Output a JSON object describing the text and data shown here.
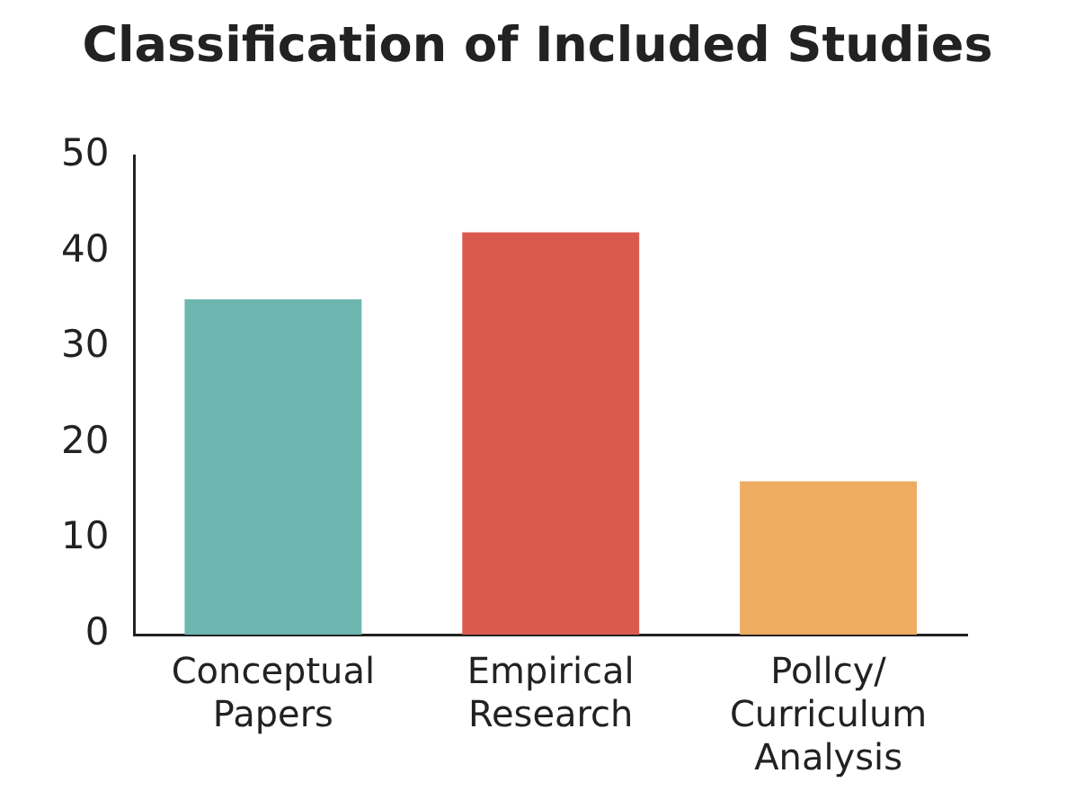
{
  "chart_data": {
    "type": "bar",
    "title": "Classification of Included Studies",
    "categories": [
      "Conceptual Papers",
      "Empirical Research",
      "Pollcy/ Curriculum Analysis"
    ],
    "values": [
      35,
      42,
      16
    ],
    "colors": [
      "#6db6b0",
      "#db5a4f",
      "#eeac62"
    ],
    "ylim": [
      0,
      50
    ],
    "yticks": [
      0,
      10,
      20,
      30,
      40,
      50
    ],
    "grid": false
  }
}
